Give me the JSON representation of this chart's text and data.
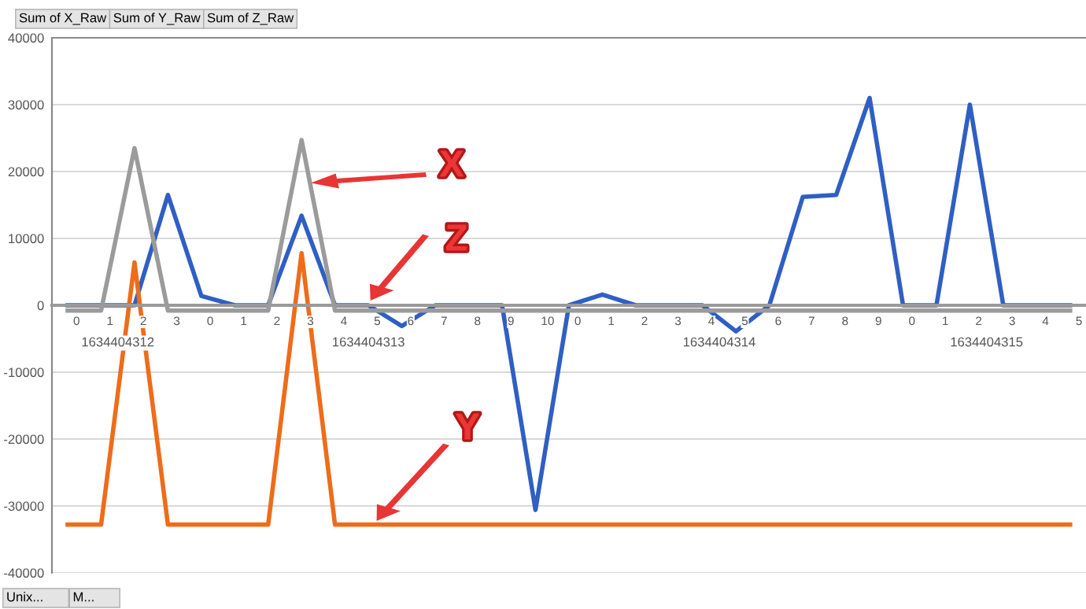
{
  "chart_data": {
    "type": "line",
    "categories": [
      "0",
      "1",
      "2",
      "3",
      "0",
      "1",
      "2",
      "3",
      "4",
      "5",
      "6",
      "7",
      "8",
      "9",
      "10",
      "0",
      "1",
      "2",
      "3",
      "4",
      "5",
      "6",
      "7",
      "8",
      "9",
      "0",
      "1",
      "2",
      "3",
      "4",
      "5"
    ],
    "series": [
      {
        "color": "#2f5fc4",
        "values": [
          0,
          0,
          0,
          16500,
          1400,
          0,
          0,
          13400,
          0,
          0,
          -3100,
          0,
          0,
          0,
          -30600,
          0,
          1600,
          0,
          0,
          0,
          -3900,
          0,
          16200,
          16500,
          31000,
          0,
          0,
          30000,
          0,
          0,
          0
        ]
      },
      {
        "color": "#9b9b9b",
        "values": [
          -800,
          -800,
          23500,
          -800,
          -800,
          -800,
          -800,
          24700,
          -800,
          -800,
          -800,
          -800,
          -800,
          -800,
          -800,
          -800,
          -800,
          -800,
          -800,
          -800,
          -800,
          -800,
          -800,
          -800,
          -800,
          -800,
          -800,
          -800,
          -800,
          -800,
          -800
        ]
      },
      {
        "color": "#ee6c1a",
        "values": [
          -32800,
          -32800,
          6400,
          -32800,
          -32800,
          -32800,
          -32800,
          7800,
          -32800,
          -32800,
          -32800,
          -32800,
          -32800,
          -32800,
          -32800,
          -32800,
          -32800,
          -32800,
          -32800,
          -32800,
          -32800,
          -32800,
          -32800,
          -32800,
          -32800,
          -32800,
          -32800,
          -32800,
          -32800,
          -32800,
          -32800
        ]
      }
    ],
    "ylim": [
      -40000,
      40000
    ],
    "yticks": [
      -40000,
      -30000,
      -20000,
      -10000,
      0,
      10000,
      20000,
      30000,
      40000
    ],
    "grid": "y",
    "annotations": [
      "Sum of X_Raw",
      "Sum of Y_Raw",
      "Sum of Z_Raw",
      "1634404312",
      "1634404313",
      "1634404314",
      "1634404315",
      "X",
      "Z",
      "Y",
      "Unix...",
      "M..."
    ]
  }
}
